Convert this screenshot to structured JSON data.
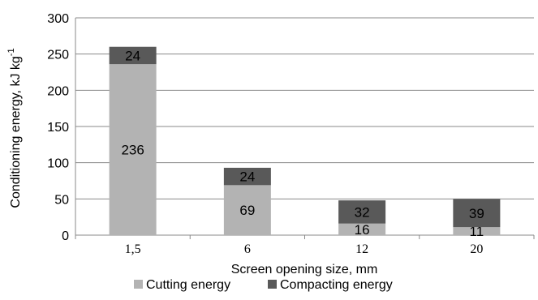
{
  "chart_data": {
    "type": "bar",
    "stacked": true,
    "categories": [
      "1,5",
      "6",
      "12",
      "20"
    ],
    "series": [
      {
        "name": "Cutting energy",
        "values": [
          236,
          69,
          16,
          11
        ],
        "color": "#b3b3b3"
      },
      {
        "name": "Compacting energy",
        "values": [
          24,
          24,
          32,
          39
        ],
        "color": "#595959"
      }
    ],
    "xlabel": "Screen opening size, mm",
    "ylabel_main": "Conditioning energy, kJ kg",
    "ylabel_sup": "-1",
    "ylim": [
      0,
      300
    ],
    "yticks": [
      0,
      50,
      100,
      150,
      200,
      250,
      300
    ],
    "grid": true,
    "legend_position": "bottom"
  }
}
